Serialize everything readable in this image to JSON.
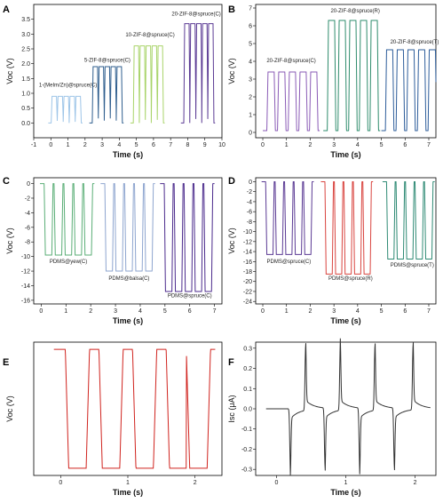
{
  "chart_data": [
    {
      "panel": "A",
      "type": "line",
      "xlabel": "Time (s)",
      "ylabel": "Voc (V)",
      "xlim": [
        -1,
        10
      ],
      "ylim": [
        -0.5,
        4.0
      ],
      "xticks": [
        -1,
        0,
        1,
        2,
        3,
        4,
        5,
        6,
        7,
        8,
        9,
        10
      ],
      "yticks": [
        0.0,
        0.5,
        1.0,
        1.5,
        2.0,
        2.5,
        3.0,
        3.5
      ],
      "series": [
        {
          "name": "1-(MeIm/Zn)@spruce(C)",
          "color": "#9ec5e8",
          "peaks": [
            0.2,
            0.55,
            0.9,
            1.25,
            1.6
          ],
          "base": 0.0,
          "amp": 0.9,
          "label_at": [
            1.0,
            1.22
          ]
        },
        {
          "name": "5-ZIF-8@spruce(C)",
          "color": "#2f5e8e",
          "peaks": [
            2.6,
            2.95,
            3.3,
            3.65,
            4.0
          ],
          "base": 0.0,
          "amp": 1.9,
          "label_at": [
            3.3,
            2.07
          ]
        },
        {
          "name": "10-ZIF-8@spruce(C)",
          "color": "#a9d46a",
          "peaks": [
            5.0,
            5.35,
            5.7,
            6.05,
            6.4
          ],
          "base": 0.0,
          "amp": 2.6,
          "label_at": [
            5.8,
            2.92
          ]
        },
        {
          "name": "20-ZIF-8@spruce(C)",
          "color": "#5b3a94",
          "peaks": [
            7.95,
            8.3,
            8.65,
            9.0,
            9.35
          ],
          "base": 0.0,
          "amp": 3.35,
          "label_at": [
            8.5,
            3.62
          ]
        }
      ]
    },
    {
      "panel": "B",
      "type": "line",
      "xlabel": "Time (s)",
      "ylabel": "Voc (V)",
      "xlim": [
        -0.3,
        7.3
      ],
      "ylim": [
        -0.3,
        7.2
      ],
      "xticks": [
        0,
        1,
        2,
        3,
        4,
        5,
        6,
        7
      ],
      "yticks": [
        0,
        1,
        2,
        3,
        4,
        5,
        6,
        7
      ],
      "series": [
        {
          "name": "20-ZIF-8@spruce(C)",
          "color": "#8a5bb6",
          "peaks": [
            0.35,
            0.8,
            1.25,
            1.7,
            2.15
          ],
          "base": 0.1,
          "amp": 3.3,
          "label_at": [
            1.2,
            3.95
          ]
        },
        {
          "name": "20-ZIF-8@spruce(R)",
          "color": "#2e8c6c",
          "peaks": [
            2.9,
            3.35,
            3.8,
            4.25,
            4.7
          ],
          "base": 0.1,
          "amp": 6.2,
          "label_at": [
            3.9,
            6.75
          ]
        },
        {
          "name": "20-ZIF-8@spruce(T)",
          "color": "#2c5c9a",
          "peaks": [
            5.35,
            5.8,
            6.25,
            6.7,
            7.15
          ],
          "base": 0.1,
          "amp": 4.55,
          "label_at": [
            6.4,
            5.0
          ]
        }
      ]
    },
    {
      "panel": "C",
      "type": "line",
      "xlabel": "Time (s)",
      "ylabel": "Voc (V)",
      "xlim": [
        -0.3,
        7.3
      ],
      "ylim": [
        -16.5,
        0.8
      ],
      "xticks": [
        0,
        1,
        2,
        3,
        4,
        5,
        6,
        7
      ],
      "yticks": [
        0,
        -2,
        -4,
        -6,
        -8,
        -10,
        -12,
        -14,
        -16
      ],
      "series": [
        {
          "name": "PDMS@yew(C)",
          "color": "#5aae76",
          "peaks": [
            0.3,
            0.7,
            1.1,
            1.5,
            1.9
          ],
          "base": 0.0,
          "amp": -9.8,
          "label_at": [
            1.1,
            -10.9
          ]
        },
        {
          "name": "PDMS@balsa(C)",
          "color": "#8ea5cf",
          "peaks": [
            2.75,
            3.15,
            3.55,
            3.95,
            4.35
          ],
          "base": 0.0,
          "amp": -12.0,
          "label_at": [
            3.55,
            -13.2
          ]
        },
        {
          "name": "PDMS@spruce(C)",
          "color": "#4b2a8c",
          "peaks": [
            5.15,
            5.55,
            5.95,
            6.35,
            6.75
          ],
          "base": 0.0,
          "amp": -14.8,
          "label_at": [
            6.0,
            -15.6
          ]
        }
      ]
    },
    {
      "panel": "D",
      "type": "line",
      "xlabel": "Time (s)",
      "ylabel": "Voc (V)",
      "xlim": [
        -0.3,
        7.3
      ],
      "ylim": [
        -24.5,
        0.8
      ],
      "xticks": [
        0,
        1,
        2,
        3,
        4,
        5,
        6,
        7
      ],
      "yticks": [
        0,
        -2,
        -4,
        -6,
        -8,
        -10,
        -12,
        -14,
        -16,
        -18,
        -20,
        -22,
        -24
      ],
      "series": [
        {
          "name": "PDMS@spruce(C)",
          "color": "#5b3a94",
          "peaks": [
            0.3,
            0.7,
            1.1,
            1.5,
            1.9
          ],
          "base": 0.0,
          "amp": -14.6,
          "label_at": [
            1.1,
            -16.3
          ]
        },
        {
          "name": "PDMS@spruce(R)",
          "color": "#d9443f",
          "peaks": [
            2.8,
            3.2,
            3.6,
            4.0,
            4.4
          ],
          "base": 0.0,
          "amp": -18.5,
          "label_at": [
            3.7,
            -19.7
          ]
        },
        {
          "name": "PDMS@spruce(T)",
          "color": "#2e8a74",
          "peaks": [
            5.4,
            5.8,
            6.2,
            6.6,
            7.0
          ],
          "base": 0.0,
          "amp": -15.5,
          "label_at": [
            6.3,
            -17.0
          ]
        }
      ]
    },
    {
      "panel": "E",
      "type": "line",
      "xlabel": "Time (s)",
      "ylabel": "Voc (V)",
      "xlim": [
        -0.4,
        2.4
      ],
      "ylim": [
        -26,
        1.5
      ],
      "xticks": [
        0,
        1,
        2
      ],
      "yticks": [],
      "series": [
        {
          "color": "#d0231e",
          "peaks": [
            0.25,
            0.75,
            1.25,
            1.75,
            2.05
          ],
          "base": 0.0,
          "amp": -24.5
        }
      ]
    },
    {
      "panel": "F",
      "type": "line",
      "xlabel": "Time (s)",
      "ylabel": "Isc (μA)",
      "xlim": [
        -0.3,
        2.3
      ],
      "ylim": [
        -0.33,
        0.33
      ],
      "xticks": [
        0,
        1,
        2
      ],
      "yticks": [
        0.3,
        0.2,
        0.1,
        0.0,
        -0.1,
        -0.2,
        -0.3
      ],
      "series": [
        {
          "color": "#333333",
          "peaks": [
            0.42,
            0.92,
            1.42,
            1.97
          ],
          "valleys": [
            0.2,
            0.7,
            1.2,
            1.7
          ],
          "base": 0.0,
          "amp": 0.31,
          "neg": -0.28
        }
      ]
    }
  ]
}
